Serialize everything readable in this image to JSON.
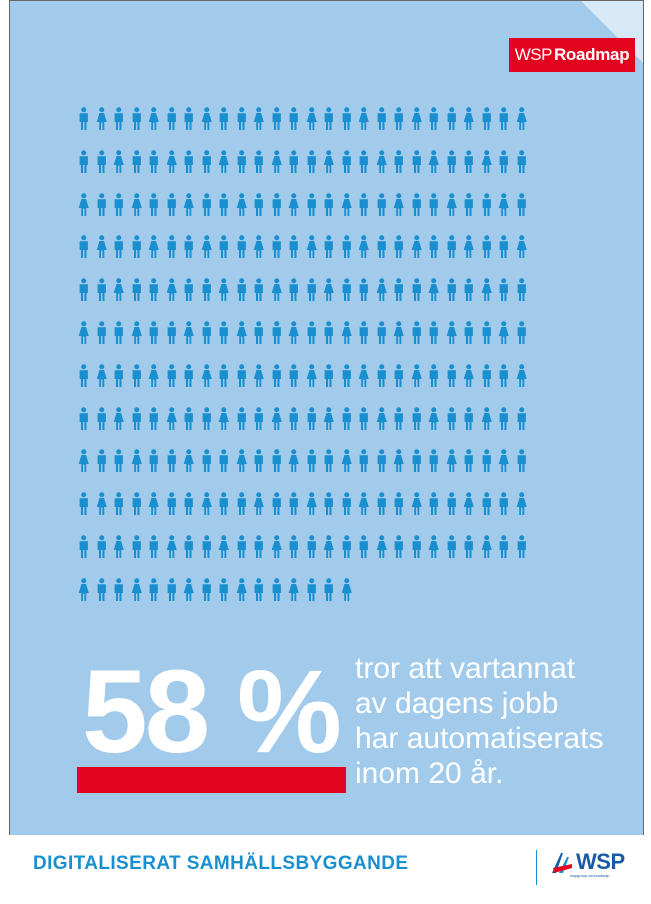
{
  "badge": {
    "brand": "WSP",
    "product": "Roadmap"
  },
  "pictogram": {
    "total_icons": 302,
    "per_row": 26,
    "rows": 12,
    "last_row_count": 16,
    "color": "#1a8fd0"
  },
  "stat": {
    "value": "58 %",
    "desc_lines": [
      "tror att vartannat",
      "av dagens jobb",
      "har automatiserats",
      "inom 20 år."
    ]
  },
  "footer": {
    "title": "DIGITALISERAT SAMHÄLLSBYGGANDE",
    "logo_text": "WSP",
    "url": "wspgroup.se/roadmap"
  },
  "colors": {
    "background": "#a2cbeb",
    "accent_red": "#e3041f",
    "icon_blue": "#1a8fd0",
    "logo_blue": "#1a5aa5"
  }
}
